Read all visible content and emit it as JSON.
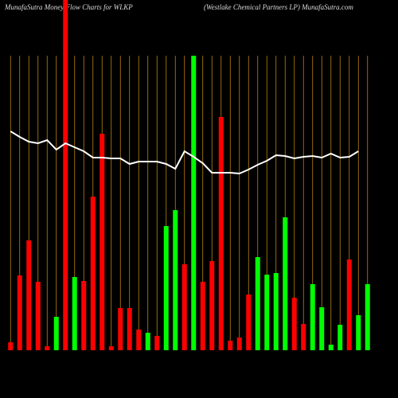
{
  "chart_data": {
    "type": "bar",
    "title": "MunafaSutra  Money Flow  Charts for WLKP",
    "subtitle": "(Westlake  Chemical Partners LP) MunafaSutra.com",
    "categories": [
      null,
      null,
      null,
      null,
      null,
      null,
      null,
      null,
      null,
      null,
      null,
      null,
      null,
      null,
      null,
      null,
      null,
      null,
      null,
      null,
      null,
      null,
      null,
      null,
      null,
      null,
      null,
      null,
      null,
      null,
      null,
      null,
      null,
      null,
      null,
      null,
      null,
      null,
      null,
      null
    ],
    "values": [
      10,
      94,
      138,
      86,
      5,
      42,
      440,
      92,
      87,
      193,
      272,
      5,
      53,
      53,
      26,
      22,
      18,
      156,
      176,
      108,
      370,
      86,
      112,
      293,
      12,
      16,
      70,
      117,
      95,
      97,
      167,
      66,
      33,
      83,
      54,
      7,
      32,
      114,
      44,
      83
    ],
    "colors": [
      "#ff0000",
      "#ff0000",
      "#ff0000",
      "#ff0000",
      "#ff0000",
      "#00ff00",
      "#ff0000",
      "#00ff00",
      "#ff0000",
      "#ff0000",
      "#ff0000",
      "#ff0000",
      "#ff0000",
      "#ff0000",
      "#ff0000",
      "#00ff00",
      "#ff0000",
      "#00ff00",
      "#00ff00",
      "#ff0000",
      "#00ff00",
      "#ff0000",
      "#ff0000",
      "#ff0000",
      "#ff0000",
      "#ff0000",
      "#ff0000",
      "#00ff00",
      "#00ff00",
      "#00ff00",
      "#00ff00",
      "#ff0000",
      "#ff0000",
      "#00ff00",
      "#00ff00",
      "#00ff00",
      "#00ff00",
      "#ff0000",
      "#00ff00",
      "#00ff00"
    ],
    "line": {
      "color": "#ffffff",
      "axis": "y2",
      "values": [
        275,
        268,
        262,
        260,
        264,
        252,
        260,
        255,
        250,
        242,
        242,
        241,
        241,
        234,
        237,
        237,
        237,
        234,
        228,
        250,
        243,
        235,
        223,
        223,
        223,
        222,
        227,
        233,
        238,
        245,
        244,
        241,
        243,
        244,
        242,
        247,
        242,
        243,
        250
      ]
    },
    "ylim": [
      0,
      440
    ],
    "y2lim": [
      0,
      440
    ],
    "grid_color": "#b8860b"
  }
}
